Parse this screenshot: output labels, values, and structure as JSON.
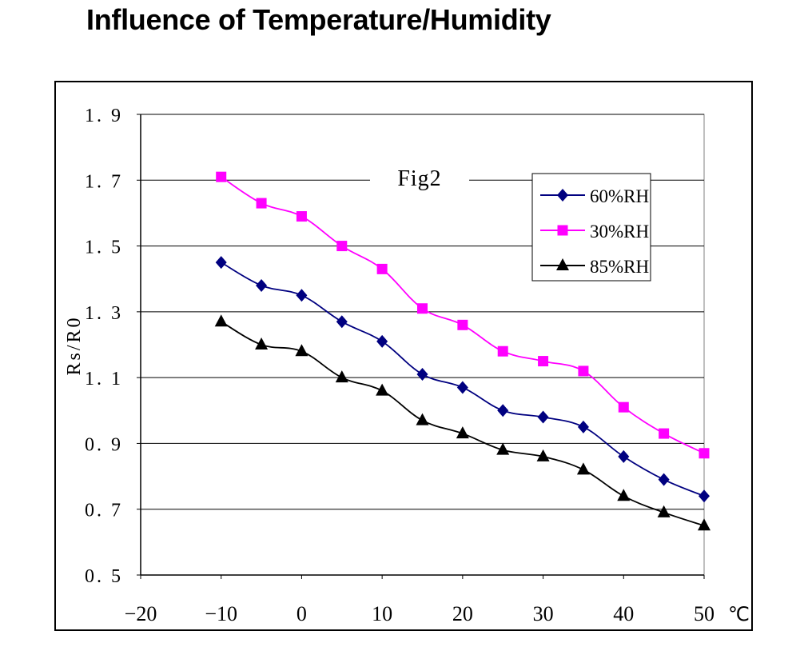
{
  "title": "Influence of Temperature/Humidity",
  "chart_data": {
    "type": "line",
    "title": "Fig2",
    "xlabel": "",
    "ylabel": "Rs/R0",
    "x_unit": "℃",
    "xlim": [
      -20,
      50
    ],
    "ylim": [
      0.5,
      1.9
    ],
    "x_ticks": [
      -20,
      -10,
      0,
      10,
      20,
      30,
      40,
      50
    ],
    "y_ticks": [
      "1.9",
      "1.7",
      "1.5",
      "1.3",
      "1.1",
      "0.9",
      "0.7",
      "0.5"
    ],
    "grid": "horizontal",
    "legend_position": "top-right",
    "x": [
      -10,
      -5,
      0,
      5,
      10,
      15,
      20,
      25,
      30,
      35,
      40,
      45,
      50
    ],
    "series": [
      {
        "name": "60%RH",
        "color": "#000080",
        "marker": "diamond",
        "values": [
          1.45,
          1.38,
          1.35,
          1.27,
          1.21,
          1.11,
          1.07,
          1.0,
          0.98,
          0.95,
          0.86,
          0.79,
          0.74
        ]
      },
      {
        "name": "30%RH",
        "color": "#FF00FF",
        "marker": "square",
        "values": [
          1.71,
          1.63,
          1.59,
          1.5,
          1.43,
          1.31,
          1.26,
          1.18,
          1.15,
          1.12,
          1.01,
          0.93,
          0.87
        ]
      },
      {
        "name": "85%RH",
        "color": "#000000",
        "marker": "triangle",
        "values": [
          1.27,
          1.2,
          1.18,
          1.1,
          1.06,
          0.97,
          0.93,
          0.88,
          0.86,
          0.82,
          0.74,
          0.69,
          0.65
        ]
      }
    ]
  }
}
